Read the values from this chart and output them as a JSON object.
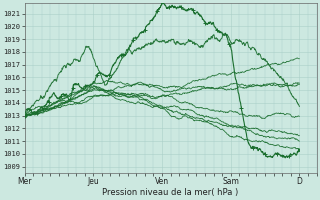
{
  "xlabel": "Pression niveau de la mer( hPa )",
  "background_color": "#cce8e0",
  "grid_color": "#aacfc8",
  "line_color": "#1a6e2e",
  "ylim": [
    1008.5,
    1021.8
  ],
  "yticks": [
    1009,
    1010,
    1011,
    1012,
    1013,
    1014,
    1015,
    1016,
    1017,
    1018,
    1019,
    1020,
    1021
  ],
  "day_labels": [
    "Mer",
    "Jeu",
    "Ven",
    "Sam",
    "D"
  ],
  "day_positions": [
    0,
    24,
    48,
    72,
    96
  ],
  "xlim": [
    0,
    102
  ]
}
